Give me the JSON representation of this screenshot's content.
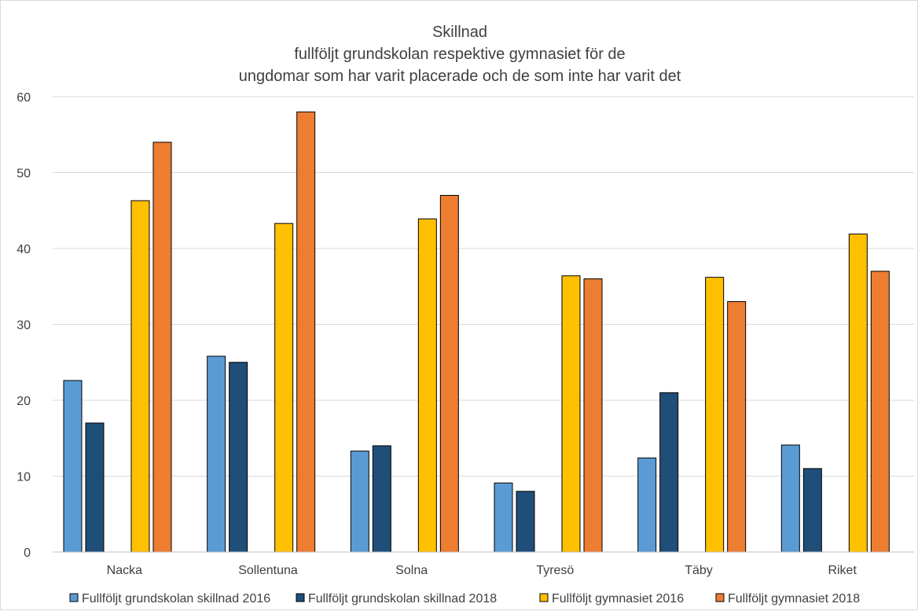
{
  "chart_data": {
    "type": "bar",
    "title_lines": [
      "Skillnad",
      "fullföljt grundskolan respektive gymnasiet för de",
      "ungdomar som har varit placerade och de som inte har varit det"
    ],
    "categories": [
      "Nacka",
      "Sollentuna",
      "Solna",
      "Tyresö",
      "Täby",
      "Riket"
    ],
    "series": [
      {
        "name": "Fullföljt grundskolan skillnad 2016",
        "color": "#5b9bd5",
        "values": [
          22.6,
          25.8,
          13.3,
          9.1,
          12.4,
          14.1
        ]
      },
      {
        "name": "Fullföljt grundskolan skillnad 2018",
        "color": "#1f4e79",
        "values": [
          17,
          25,
          14,
          8,
          21,
          11
        ]
      },
      {
        "name": "Fullföljt gymnasiet 2016",
        "color": "#ffc000",
        "values": [
          46.3,
          43.3,
          43.9,
          36.4,
          36.2,
          41.9
        ]
      },
      {
        "name": "Fullföljt gymnasiet 2018",
        "color": "#ed7d31",
        "values": [
          54,
          58,
          47,
          36,
          33,
          37
        ]
      }
    ],
    "ylim": [
      0,
      60
    ],
    "yticks": [
      0,
      10,
      20,
      30,
      40,
      50,
      60
    ],
    "grid": true,
    "legend_position": "bottom"
  }
}
